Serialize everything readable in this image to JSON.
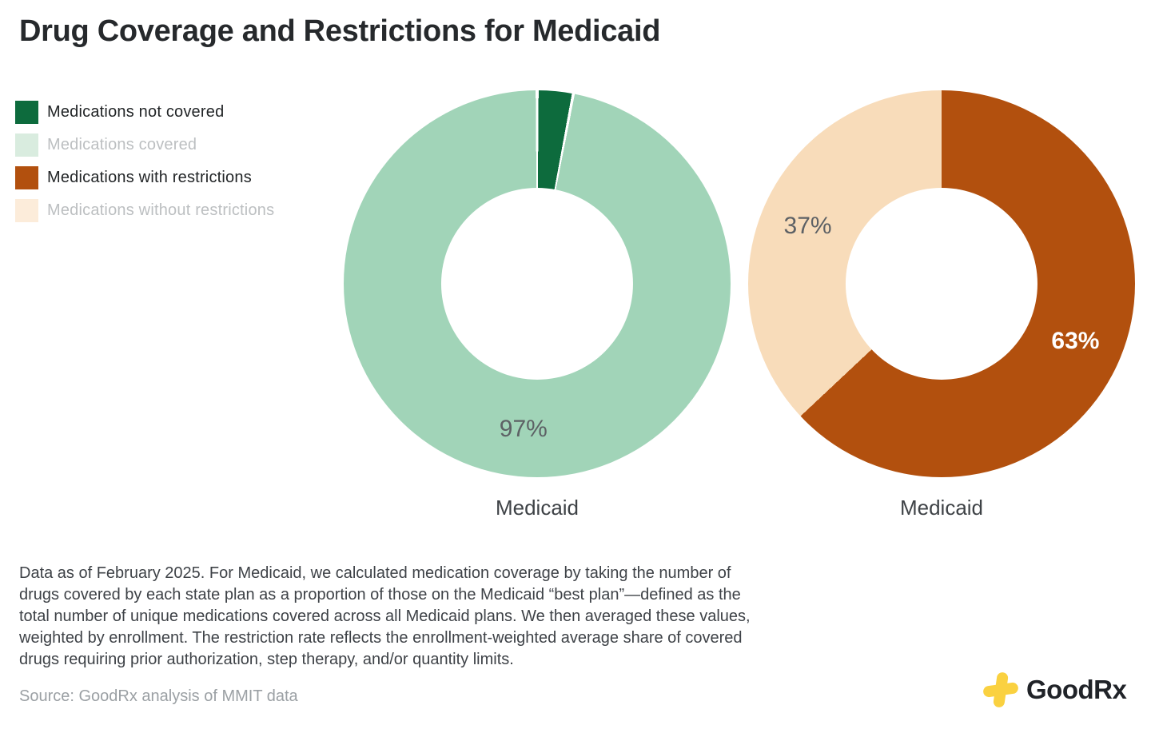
{
  "title": "Drug Coverage and Restrictions for Medicaid",
  "legend": {
    "items": [
      {
        "label": "Medications not covered",
        "swatch_color": "#0d6b3d",
        "muted": false
      },
      {
        "label": "Medications covered",
        "swatch_color": "#d9ecdf",
        "muted": true
      },
      {
        "label": "Medications with restrictions",
        "swatch_color": "#b2500e",
        "muted": false
      },
      {
        "label": "Medications without restrictions",
        "swatch_color": "#fcecda",
        "muted": true
      }
    ]
  },
  "chart_data": [
    {
      "type": "pie",
      "subtype": "donut",
      "category_label": "Medicaid",
      "start_angle_deg": 0,
      "hole_ratio": 0.5,
      "slice_gap": true,
      "slices": [
        {
          "name": "Medications not covered",
          "value": 3,
          "color": "#0d6b3d"
        },
        {
          "name": "Medications covered",
          "value": 97,
          "color": "#a1d4b8",
          "label": "97%",
          "label_color": "#5d6165",
          "label_bold": false
        }
      ]
    },
    {
      "type": "pie",
      "subtype": "donut",
      "category_label": "Medicaid",
      "start_angle_deg": 0,
      "hole_ratio": 0.5,
      "slice_gap": false,
      "slices": [
        {
          "name": "Medications with restrictions",
          "value": 63,
          "color": "#b2500e",
          "label": "63%",
          "label_color": "#ffffff",
          "label_bold": true
        },
        {
          "name": "Medications without restrictions",
          "value": 37,
          "color": "#f8dcba",
          "label": "37%",
          "label_color": "#5d6165",
          "label_bold": false
        }
      ]
    }
  ],
  "footnote_lines": [
    "Data as of February 2025. For Medicaid, we calculated medication coverage by taking the number of",
    "drugs covered by each state plan as a proportion of those on the Medicaid “best plan”—defined as the",
    "total number of unique medications covered across all Medicaid plans. We then averaged these values,",
    "weighted by enrollment. The restriction rate reflects the enrollment-weighted average share of covered",
    "drugs requiring prior authorization, step therapy, and/or quantity limits."
  ],
  "source": "Source: GoodRx analysis of MMIT data",
  "logo": {
    "text": "GoodRx",
    "cross_color": "#fad140",
    "text_color": "#202328"
  }
}
